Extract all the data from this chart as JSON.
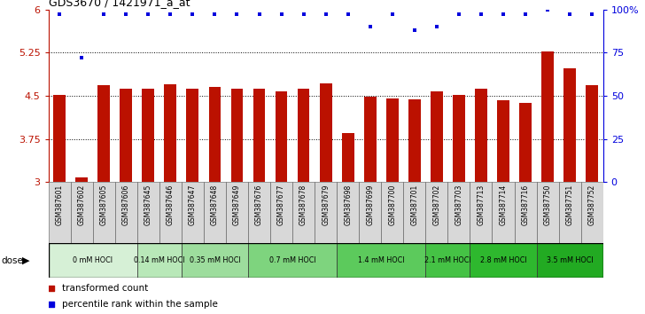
{
  "title": "GDS3670 / 1421971_a_at",
  "samples": [
    "GSM387601",
    "GSM387602",
    "GSM387605",
    "GSM387606",
    "GSM387645",
    "GSM387646",
    "GSM387647",
    "GSM387648",
    "GSM387649",
    "GSM387676",
    "GSM387677",
    "GSM387678",
    "GSM387679",
    "GSM387698",
    "GSM387699",
    "GSM387700",
    "GSM387701",
    "GSM387702",
    "GSM387703",
    "GSM387713",
    "GSM387714",
    "GSM387716",
    "GSM387750",
    "GSM387751",
    "GSM387752"
  ],
  "bar_values": [
    4.52,
    3.08,
    4.68,
    4.63,
    4.62,
    4.7,
    4.62,
    4.65,
    4.62,
    4.62,
    4.57,
    4.63,
    4.72,
    3.85,
    4.48,
    4.46,
    4.44,
    4.57,
    4.52,
    4.62,
    4.42,
    4.38,
    5.27,
    4.97,
    4.68
  ],
  "percentile_values": [
    97,
    72,
    97,
    97,
    97,
    97,
    97,
    97,
    97,
    97,
    97,
    97,
    97,
    97,
    90,
    97,
    88,
    90,
    97,
    97,
    97,
    97,
    100,
    97,
    97
  ],
  "groups": [
    {
      "label": "0 mM HOCl",
      "start": 0,
      "end": 3,
      "color": "#d6f0d6"
    },
    {
      "label": "0.14 mM HOCl",
      "start": 4,
      "end": 5,
      "color": "#b8e8b8"
    },
    {
      "label": "0.35 mM HOCl",
      "start": 6,
      "end": 8,
      "color": "#9ddd9d"
    },
    {
      "label": "0.7 mM HOCl",
      "start": 9,
      "end": 12,
      "color": "#7ed47e"
    },
    {
      "label": "1.4 mM HOCl",
      "start": 13,
      "end": 16,
      "color": "#5cca5c"
    },
    {
      "label": "2.1 mM HOCl",
      "start": 17,
      "end": 18,
      "color": "#45c245"
    },
    {
      "label": "2.8 mM HOCl",
      "start": 19,
      "end": 21,
      "color": "#2eb82e"
    },
    {
      "label": "3.5 mM HOCl",
      "start": 22,
      "end": 24,
      "color": "#22aa22"
    }
  ],
  "ylim": [
    3.0,
    6.0
  ],
  "yticks": [
    3.0,
    3.75,
    4.5,
    5.25,
    6.0
  ],
  "ytick_labels": [
    "3",
    "3.75",
    "4.5",
    "5.25",
    "6"
  ],
  "gridlines": [
    3.75,
    4.5,
    5.25
  ],
  "bar_color": "#bb1100",
  "dot_color": "#0000dd",
  "right_yticks": [
    0,
    25,
    50,
    75,
    100
  ],
  "right_ytick_labels": [
    "0",
    "25",
    "50",
    "75",
    "100%"
  ],
  "sample_box_color": "#d8d8d8",
  "dose_label": "dose",
  "legend_bar_label": "transformed count",
  "legend_dot_label": "percentile rank within the sample"
}
